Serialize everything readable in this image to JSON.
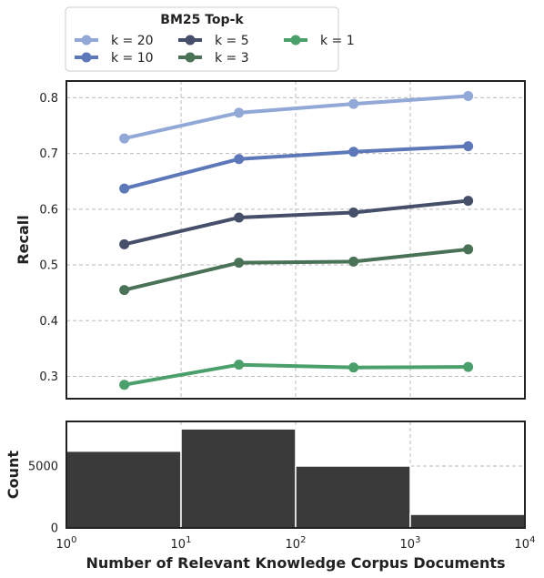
{
  "chart_data": [
    {
      "type": "line",
      "ylabel": "Recall",
      "xscale": "log",
      "xlim": [
        1,
        10000
      ],
      "ylim": [
        0.26,
        0.83
      ],
      "yticks": [
        0.3,
        0.4,
        0.5,
        0.6,
        0.7,
        0.8
      ],
      "ytick_labels": [
        "0.3",
        "0.4",
        "0.5",
        "0.6",
        "0.7",
        "0.8"
      ],
      "grid": true,
      "legend": {
        "title": "BM25 Top-k",
        "placement": "top, outside the axes",
        "columns": 3
      },
      "x": [
        3.2,
        32,
        320,
        3200
      ],
      "series": [
        {
          "name": "k = 20",
          "color": "#92a8d6",
          "values": [
            0.727,
            0.773,
            0.789,
            0.803
          ]
        },
        {
          "name": "k = 10",
          "color": "#5d78b8",
          "values": [
            0.637,
            0.69,
            0.703,
            0.713
          ]
        },
        {
          "name": "k = 5",
          "color": "#454f6a",
          "values": [
            0.537,
            0.585,
            0.594,
            0.615
          ]
        },
        {
          "name": "k = 3",
          "color": "#4a7257",
          "values": [
            0.455,
            0.504,
            0.506,
            0.528
          ]
        },
        {
          "name": "k = 1",
          "color": "#4b9f6a",
          "values": [
            0.285,
            0.321,
            0.316,
            0.317
          ]
        }
      ]
    },
    {
      "type": "bar",
      "xlabel": "Number of Relevant Knowledge Corpus Documents",
      "ylabel": "Count",
      "xscale": "log",
      "xlim": [
        1,
        10000
      ],
      "ylim": [
        0,
        8600
      ],
      "yticks": [
        0,
        5000
      ],
      "ytick_labels": [
        "0",
        "5000"
      ],
      "xtick_labels": [
        {
          "base": "10",
          "exp": "0"
        },
        {
          "base": "10",
          "exp": "1"
        },
        {
          "base": "10",
          "exp": "2"
        },
        {
          "base": "10",
          "exp": "3"
        },
        {
          "base": "10",
          "exp": "4"
        }
      ],
      "grid": true,
      "bar_color": "#3a3a3a",
      "bins": [
        {
          "from": 1,
          "to": 10,
          "count": 6200
        },
        {
          "from": 10,
          "to": 100,
          "count": 8000
        },
        {
          "from": 100,
          "to": 1000,
          "count": 5000
        },
        {
          "from": 1000,
          "to": 10000,
          "count": 1100
        }
      ]
    }
  ]
}
